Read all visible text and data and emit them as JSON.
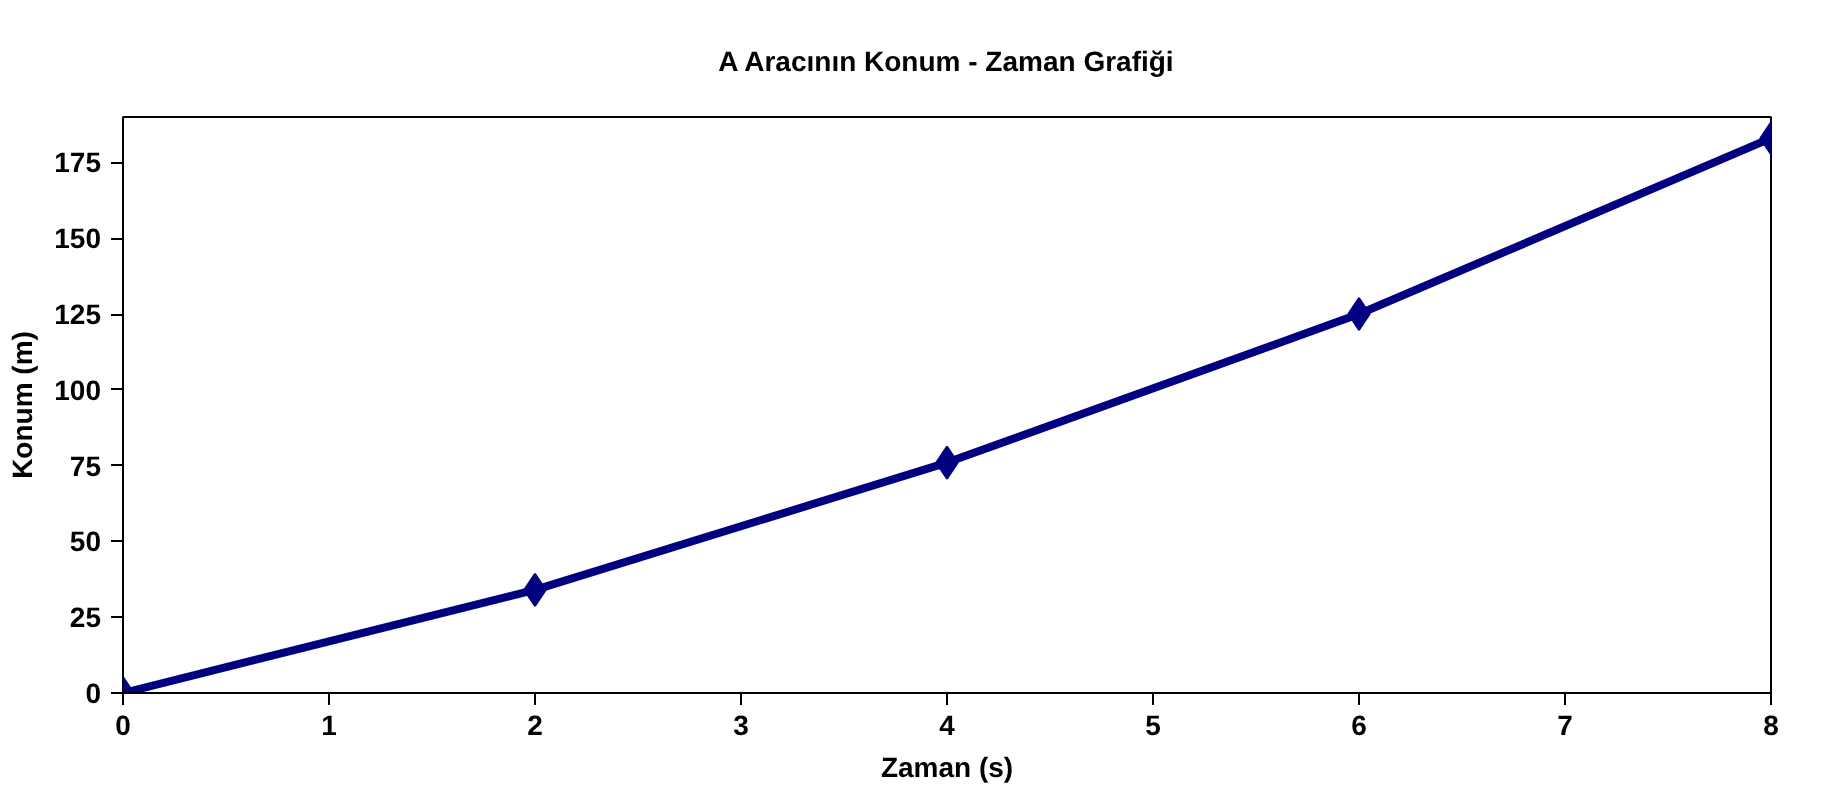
{
  "chart_data": {
    "type": "line",
    "title": "A Aracının Konum - Zaman Grafiği",
    "xlabel": "Zaman (s)",
    "ylabel": "Konum (m)",
    "x": [
      0,
      2,
      4,
      6,
      8
    ],
    "series": [
      {
        "color": "#000080",
        "values": [
          0,
          34,
          76,
          125,
          183
        ]
      }
    ],
    "xlim": [
      0,
      8
    ],
    "xticks": [
      0,
      1,
      2,
      3,
      4,
      5,
      6,
      7,
      8
    ],
    "ylim": [
      0,
      190
    ],
    "yticks": [
      0,
      25,
      50,
      75,
      100,
      125,
      150,
      175
    ],
    "grid": false,
    "marker": "diamond",
    "line_style": "solid"
  }
}
